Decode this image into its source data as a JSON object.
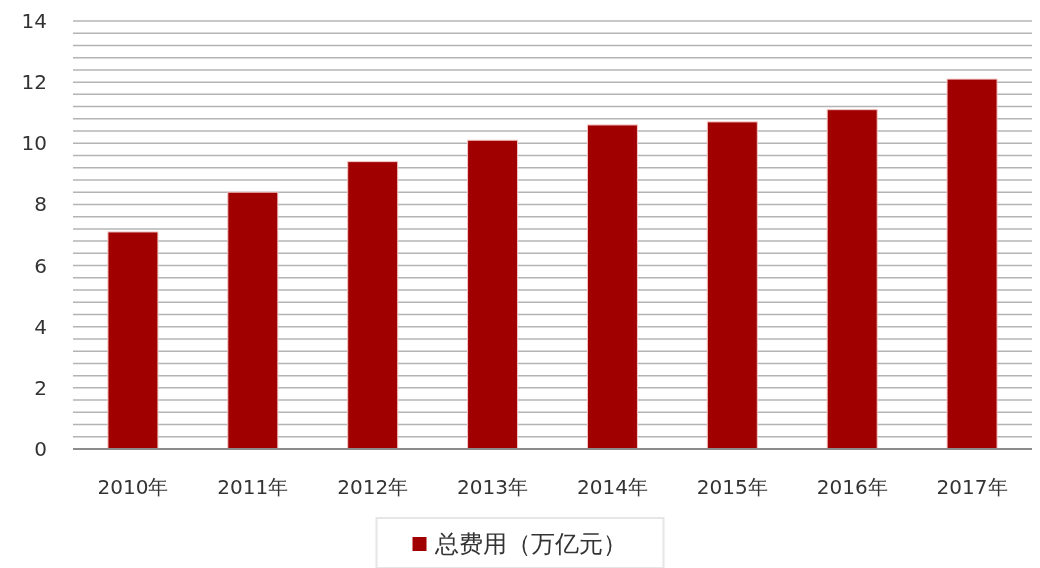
{
  "chart_data": {
    "type": "bar",
    "categories": [
      "2010年",
      "2011年",
      "2012年",
      "2013年",
      "2014年",
      "2015年",
      "2016年",
      "2017年"
    ],
    "series": [
      {
        "name": "总费用（万亿元）",
        "color": "#a00000",
        "values": [
          7.1,
          8.4,
          9.4,
          10.1,
          10.6,
          10.7,
          11.1,
          12.1
        ]
      }
    ],
    "ylim": [
      0,
      14
    ],
    "yticks": [
      0,
      {
        "value": 0.4,
        "label": null
      },
      {
        "value": 0.8,
        "label": null
      },
      {
        "value": 1.2,
        "label": null
      },
      {
        "value": 1.6,
        "label": null
      },
      2,
      {
        "value": 2.4,
        "label": null
      },
      {
        "value": 2.8,
        "label": null
      },
      {
        "value": 3.2,
        "label": null
      },
      {
        "value": 3.6,
        "label": null
      },
      4,
      {
        "value": 4.4,
        "label": null
      },
      {
        "value": 4.8,
        "label": null
      },
      {
        "value": 5.2,
        "label": null
      },
      {
        "value": 5.6,
        "label": null
      },
      6,
      {
        "value": 6.4,
        "label": null
      },
      {
        "value": 6.8,
        "label": null
      },
      {
        "value": 7.2,
        "label": null
      },
      {
        "value": 7.6,
        "label": null
      },
      8,
      {
        "value": 8.4,
        "label": null
      },
      {
        "value": 8.8,
        "label": null
      },
      {
        "value": 9.2,
        "label": null
      },
      {
        "value": 9.6,
        "label": null
      },
      10,
      {
        "value": 10.4,
        "label": null
      },
      {
        "value": 10.8,
        "label": null
      },
      {
        "value": 11.2,
        "label": null
      },
      {
        "value": 11.6,
        "label": null
      },
      12,
      {
        "value": 12.4,
        "label": null
      },
      {
        "value": 12.8,
        "label": null
      },
      {
        "value": 13.2,
        "label": null
      },
      {
        "value": 13.6,
        "label": null
      },
      14
    ],
    "grid": "y",
    "legend": "bottom"
  }
}
